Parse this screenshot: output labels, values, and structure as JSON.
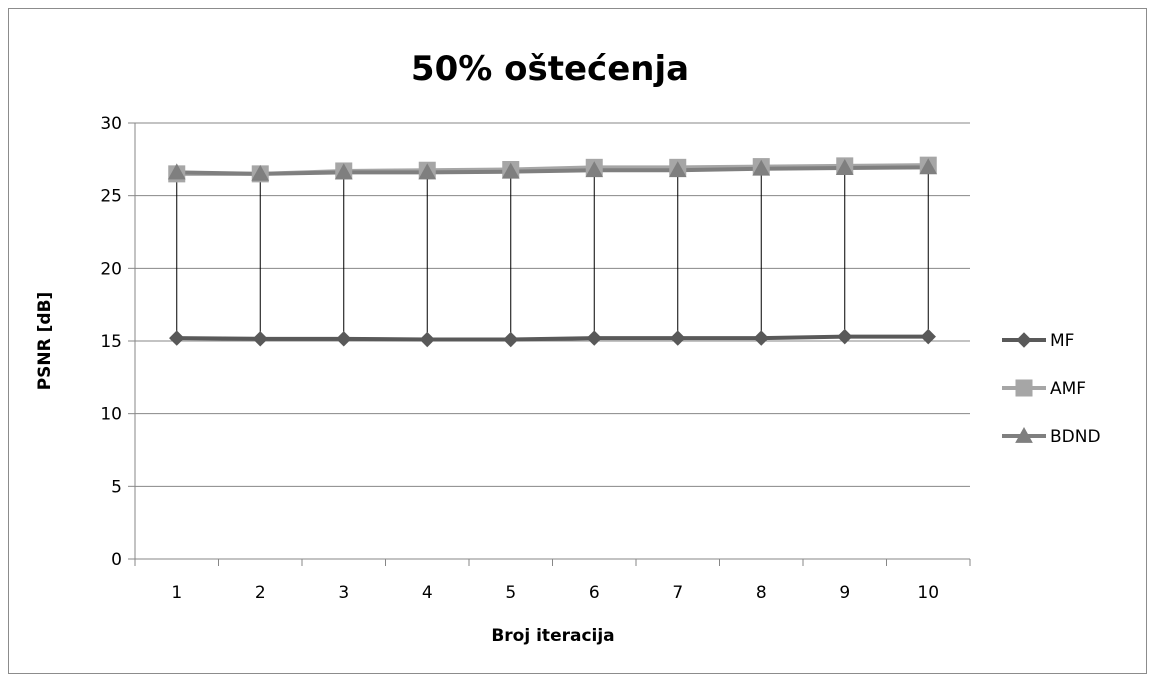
{
  "chart_data": {
    "type": "line",
    "title": "50% oštećenja",
    "xlabel": "Broj iteracija",
    "ylabel": "PSNR [dB]",
    "categories": [
      "1",
      "2",
      "3",
      "4",
      "5",
      "6",
      "7",
      "8",
      "9",
      "10"
    ],
    "ylim": [
      0,
      30
    ],
    "yticks": [
      0,
      5,
      10,
      15,
      20,
      25,
      30
    ],
    "grid": true,
    "legend_position": "right",
    "high_low_lines": true,
    "series": [
      {
        "name": "MF",
        "marker": "diamond",
        "color": "#595959",
        "values": [
          15.2,
          15.15,
          15.15,
          15.1,
          15.1,
          15.2,
          15.2,
          15.2,
          15.3,
          15.3
        ]
      },
      {
        "name": "AMF",
        "marker": "square",
        "color": "#a6a6a6",
        "values": [
          26.5,
          26.5,
          26.7,
          26.75,
          26.8,
          26.95,
          26.95,
          27.0,
          27.05,
          27.1
        ]
      },
      {
        "name": "BDND",
        "marker": "triangle",
        "color": "#7f7f7f",
        "values": [
          26.6,
          26.5,
          26.6,
          26.6,
          26.65,
          26.75,
          26.75,
          26.85,
          26.9,
          26.95
        ]
      }
    ]
  }
}
